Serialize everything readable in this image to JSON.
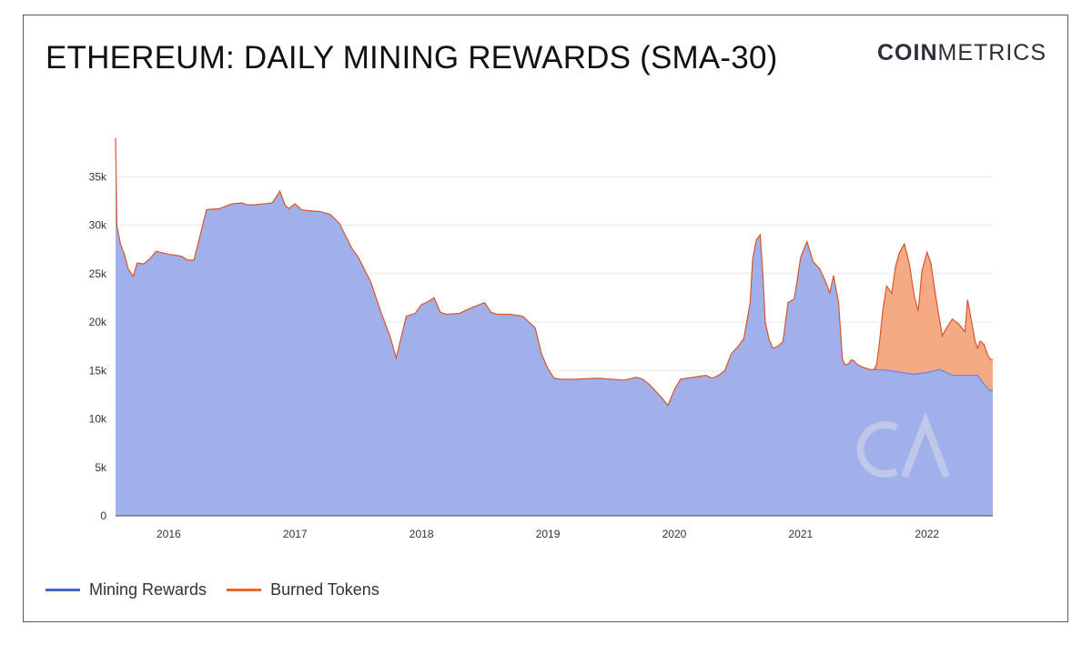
{
  "header": {
    "title": "ETHEREUM:  DAILY MINING REWARDS (SMA-30)",
    "brand_bold": "COIN",
    "brand_light": "METRICS"
  },
  "colors": {
    "mining_fill": "#9fb0ea",
    "burned_fill": "#f4aa84",
    "line": "#d9552b",
    "mining_legend": "#4466cc",
    "burned_legend": "#e8682c",
    "grid": "#e9e9e9",
    "watermark": "#c9cfe9"
  },
  "legend": [
    {
      "label": "Mining Rewards",
      "color": "#4466cc"
    },
    {
      "label": "Burned Tokens",
      "color": "#e8682c"
    }
  ],
  "chart_data": {
    "type": "area",
    "title": "ETHEREUM:  DAILY MINING REWARDS (SMA-30)",
    "xlabel": "",
    "ylabel": "",
    "xlim": [
      2015.58,
      2022.52
    ],
    "ylim": [
      0,
      40000
    ],
    "grid": true,
    "legend_position": "bottom-left",
    "stacked": true,
    "y_ticks": [
      0,
      5000,
      10000,
      15000,
      20000,
      25000,
      30000,
      35000
    ],
    "y_tick_labels": [
      "0",
      "5k",
      "10k",
      "15k",
      "20k",
      "25k",
      "30k",
      "35k"
    ],
    "x_ticks": [
      2016,
      2017,
      2018,
      2019,
      2020,
      2021,
      2022
    ],
    "x_tick_labels": [
      "2016",
      "2017",
      "2018",
      "2019",
      "2020",
      "2021",
      "2022"
    ],
    "series": [
      {
        "name": "Mining Rewards",
        "x": [
          2015.58,
          2015.59,
          2015.6,
          2015.62,
          2015.65,
          2015.68,
          2015.72,
          2015.75,
          2015.8,
          2015.85,
          2015.9,
          2016.0,
          2016.05,
          2016.1,
          2016.15,
          2016.2,
          2016.3,
          2016.4,
          2016.5,
          2016.58,
          2016.62,
          2016.68,
          2016.75,
          2016.82,
          2016.88,
          2016.92,
          2016.95,
          2017.0,
          2017.05,
          2017.1,
          2017.2,
          2017.28,
          2017.35,
          2017.4,
          2017.45,
          2017.5,
          2017.6,
          2017.68,
          2017.75,
          2017.8,
          2017.88,
          2017.95,
          2018.0,
          2018.05,
          2018.1,
          2018.15,
          2018.2,
          2018.3,
          2018.4,
          2018.5,
          2018.55,
          2018.6,
          2018.7,
          2018.8,
          2018.9,
          2018.95,
          2019.0,
          2019.05,
          2019.1,
          2019.2,
          2019.4,
          2019.6,
          2019.7,
          2019.75,
          2019.8,
          2019.9,
          2019.95,
          2020.0,
          2020.05,
          2020.1,
          2020.2,
          2020.25,
          2020.3,
          2020.35,
          2020.4,
          2020.45,
          2020.5,
          2020.55,
          2020.6,
          2020.62,
          2020.65,
          2020.68,
          2020.7,
          2020.72,
          2020.75,
          2020.78,
          2020.82,
          2020.86,
          2020.9,
          2020.95,
          2021.0,
          2021.05,
          2021.1,
          2021.15,
          2021.2,
          2021.23,
          2021.26,
          2021.3,
          2021.33,
          2021.35,
          2021.38,
          2021.4,
          2021.42,
          2021.45,
          2021.5,
          2021.55,
          2021.6,
          2021.7,
          2021.8,
          2021.9,
          2022.0,
          2022.1,
          2022.2,
          2022.3,
          2022.4,
          2022.45,
          2022.5,
          2022.52
        ],
        "values": [
          39000,
          30000,
          29300,
          28000,
          27000,
          25500,
          24700,
          26100,
          26000,
          26500,
          27300,
          27000,
          26900,
          26800,
          26400,
          26400,
          31600,
          31700,
          32200,
          32300,
          32100,
          32100,
          32200,
          32300,
          33500,
          32100,
          31700,
          32200,
          31600,
          31500,
          31400,
          31100,
          30200,
          28900,
          27600,
          26700,
          24100,
          21000,
          18600,
          16300,
          20600,
          20900,
          21800,
          22100,
          22500,
          21000,
          20800,
          20900,
          21500,
          22000,
          21000,
          20800,
          20800,
          20600,
          19400,
          16700,
          15200,
          14200,
          14100,
          14100,
          14200,
          14000,
          14300,
          14100,
          13600,
          12200,
          11400,
          13000,
          14100,
          14200,
          14400,
          14500,
          14200,
          14500,
          15000,
          16700,
          17400,
          18300,
          22000,
          26500,
          28500,
          29000,
          25100,
          20000,
          18200,
          17300,
          17500,
          18000,
          22000,
          22400,
          26700,
          28300,
          26200,
          25500,
          24100,
          23000,
          24800,
          22000,
          16200,
          15600,
          15700,
          16100,
          16000,
          15600,
          15300,
          15100,
          15100,
          15000,
          14800,
          14600,
          14800,
          15100,
          14500,
          14500,
          14500,
          13600,
          12900,
          13000
        ]
      },
      {
        "name": "Burned Tokens",
        "x": [
          2021.58,
          2021.6,
          2021.62,
          2021.65,
          2021.68,
          2021.72,
          2021.75,
          2021.78,
          2021.82,
          2021.86,
          2021.9,
          2021.93,
          2021.96,
          2022.0,
          2022.03,
          2022.06,
          2022.09,
          2022.12,
          2022.15,
          2022.2,
          2022.25,
          2022.3,
          2022.32,
          2022.35,
          2022.38,
          2022.4,
          2022.42,
          2022.45,
          2022.48,
          2022.52
        ],
        "values": [
          0,
          500,
          2400,
          6200,
          8700,
          8000,
          10800,
          12300,
          13300,
          11300,
          8000,
          6500,
          10600,
          12400,
          11200,
          8400,
          5800,
          3600,
          4500,
          5800,
          5300,
          4500,
          7800,
          5700,
          3500,
          2800,
          3900,
          4100,
          3400,
          3100
        ]
      }
    ]
  },
  "watermark": {
    "icon": "coinmetrics-cm-logo-icon"
  }
}
